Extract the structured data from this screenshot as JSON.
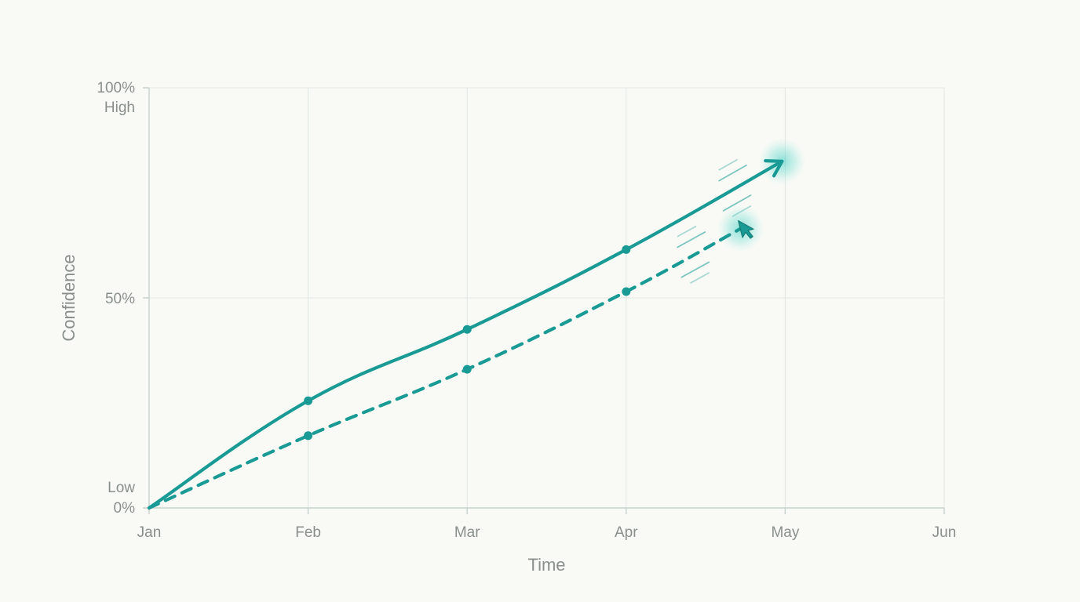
{
  "chart_data": {
    "type": "line",
    "xlabel": "Time",
    "ylabel": "Confidence",
    "x_ticks": [
      "Jan",
      "Feb",
      "Mar",
      "Apr",
      "May",
      "Jun"
    ],
    "y_ticks": [
      {
        "value": 0,
        "label": "0%",
        "sublabel": "Low"
      },
      {
        "value": 50,
        "label": "50%",
        "sublabel": ""
      },
      {
        "value": 100,
        "label": "100%",
        "sublabel": "High"
      }
    ],
    "xlim": [
      0,
      5
    ],
    "ylim": [
      0,
      100
    ],
    "grid": true,
    "accent_color": "#1a9a94",
    "series": [
      {
        "style": "solid",
        "x": [
          0,
          1,
          2,
          3
        ],
        "y": [
          0,
          25.5,
          42.5,
          61.5
        ],
        "end_point": {
          "x": 3.98,
          "y": 82.5
        },
        "end_marker": "arrow-icon"
      },
      {
        "style": "dashed",
        "x": [
          0,
          1,
          2,
          3
        ],
        "y": [
          0,
          17.2,
          33,
          51.5
        ],
        "end_point": {
          "x": 3.72,
          "y": 66.5
        },
        "end_marker": "cursor-arrow-icon"
      }
    ]
  }
}
